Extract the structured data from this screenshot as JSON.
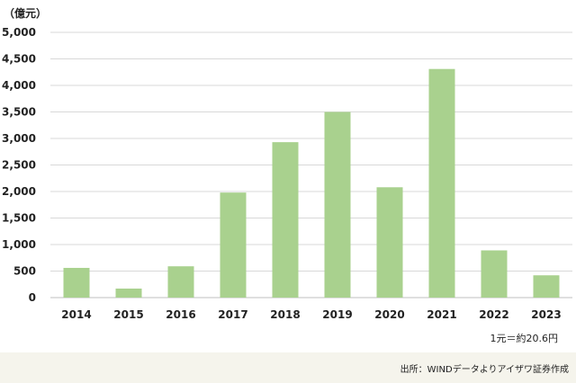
{
  "chart_data": {
    "type": "bar",
    "unit_label": "（億元）",
    "categories": [
      "2014",
      "2015",
      "2016",
      "2017",
      "2018",
      "2019",
      "2020",
      "2021",
      "2022",
      "2023"
    ],
    "values": [
      560,
      170,
      590,
      1980,
      2930,
      3500,
      2080,
      4310,
      890,
      420
    ],
    "yticks": [
      "0",
      "500",
      "1,000",
      "1,500",
      "2,000",
      "2,500",
      "3,000",
      "3,500",
      "4,000",
      "4,500",
      "5,000"
    ],
    "ylim": [
      0,
      5000
    ],
    "grid": true,
    "bar_color": "#a9d18e",
    "grid_color": "#d9d9d9",
    "note": "1元＝約20.6円",
    "source": "出所：WINDデータよりアイザワ証券作成"
  }
}
